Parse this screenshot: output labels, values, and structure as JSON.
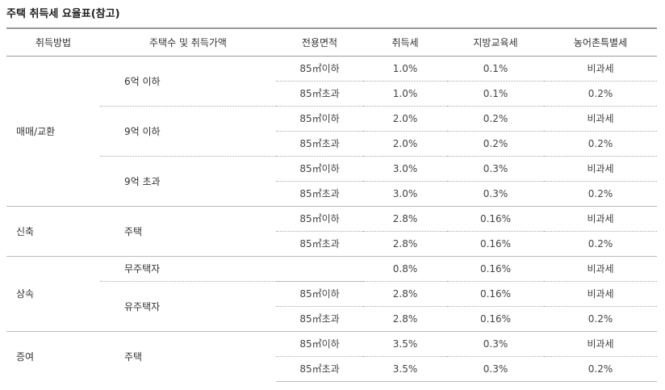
{
  "title": "주택 취득세 요율표(참고)",
  "headers": [
    "취득방법",
    "주택수 및 취득가액",
    "전용면적",
    "취득세",
    "지방교육세",
    "농어촌특별세"
  ],
  "groups": {
    "trade": "매매/교환",
    "new": "신축",
    "inherit": "상속",
    "gift": "증여"
  },
  "houses": {
    "h1": "6억 이하",
    "h2": "9억 이하",
    "h3": "9억 초과",
    "h4": "주택",
    "h5": "무주택자",
    "h6": "유주택자",
    "h7": "주택"
  },
  "rows": [
    {
      "area": "85㎡이하",
      "tax": "1.0%",
      "edu": "0.1%",
      "rural": "비과세"
    },
    {
      "area": "85㎡초과",
      "tax": "1.0%",
      "edu": "0.1%",
      "rural": "0.2%"
    },
    {
      "area": "85㎡이하",
      "tax": "2.0%",
      "edu": "0.2%",
      "rural": "비과세"
    },
    {
      "area": "85㎡초과",
      "tax": "2.0%",
      "edu": "0.2%",
      "rural": "0.2%"
    },
    {
      "area": "85㎡이하",
      "tax": "3.0%",
      "edu": "0.3%",
      "rural": "비과세"
    },
    {
      "area": "85㎡초과",
      "tax": "3.0%",
      "edu": "0.3%",
      "rural": "0.2%"
    },
    {
      "area": "85㎡이하",
      "tax": "2.8%",
      "edu": "0.16%",
      "rural": "비과세"
    },
    {
      "area": "85㎡초과",
      "tax": "2.8%",
      "edu": "0.16%",
      "rural": "0.2%"
    },
    {
      "area": "",
      "tax": "0.8%",
      "edu": "0.16%",
      "rural": "비과세"
    },
    {
      "area": "85㎡이하",
      "tax": "2.8%",
      "edu": "0.16%",
      "rural": "비과세"
    },
    {
      "area": "85㎡초과",
      "tax": "2.8%",
      "edu": "0.16%",
      "rural": "0.2%"
    },
    {
      "area": "85㎡이하",
      "tax": "3.5%",
      "edu": "0.3%",
      "rural": "비과세"
    },
    {
      "area": "85㎡초과",
      "tax": "3.5%",
      "edu": "0.3%",
      "rural": "0.2%"
    }
  ]
}
